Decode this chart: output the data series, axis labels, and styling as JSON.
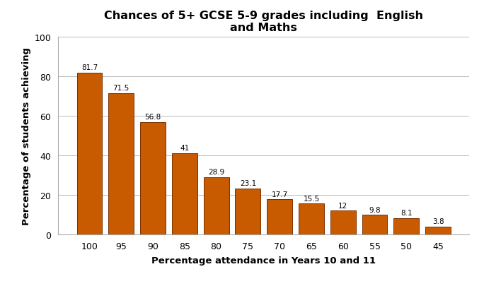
{
  "categories": [
    "100",
    "95",
    "90",
    "85",
    "80",
    "75",
    "70",
    "65",
    "60",
    "55",
    "50",
    "45"
  ],
  "values": [
    81.7,
    71.5,
    56.8,
    41.0,
    28.9,
    23.1,
    17.7,
    15.5,
    12.0,
    9.8,
    8.1,
    3.8
  ],
  "bar_color": "#C85A00",
  "bar_edge_color": "#7B3000",
  "title_line1": "Chances of 5+ GCSE 5-9 grades including  English",
  "title_line2": "and Maths",
  "xlabel": "Percentage attendance in Years 10 and 11",
  "ylabel": "Percentage of students achieving",
  "ylim": [
    0,
    100
  ],
  "yticks": [
    0,
    20,
    40,
    60,
    80,
    100
  ],
  "title_fontsize": 11.5,
  "label_fontsize": 9.5,
  "tick_fontsize": 9,
  "value_fontsize": 7.5,
  "background_color": "#ffffff",
  "grid_color": "#bbbbbb"
}
